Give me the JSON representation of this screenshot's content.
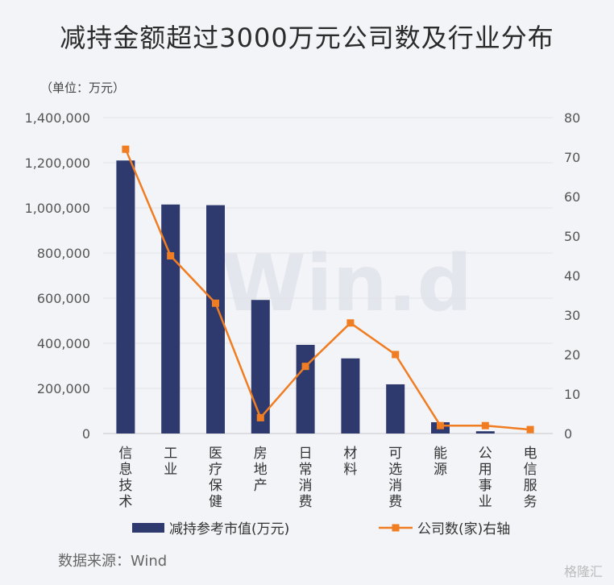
{
  "chart_data": {
    "type": "bar",
    "title": "减持金额超过3000万元公司数及行业分布",
    "unit_note": "（单位：万元）",
    "categories": [
      "信息技术",
      "工业",
      "医疗保健",
      "房地产",
      "日常消费",
      "材料",
      "可选消费",
      "能源",
      "公用事业",
      "电信服务"
    ],
    "series": [
      {
        "name": "减持参考市值(万元)",
        "type": "bar",
        "axis": "left",
        "color": "#2e3a6e",
        "values": [
          1210000,
          1015000,
          1012000,
          592000,
          393000,
          333000,
          218000,
          50000,
          10000,
          0
        ]
      },
      {
        "name": "公司数(家)右轴",
        "type": "line",
        "axis": "right",
        "color": "#f07d22",
        "values": [
          72,
          45,
          33,
          4,
          17,
          28,
          20,
          2,
          2,
          1
        ]
      }
    ],
    "left_axis": {
      "min": 0,
      "max": 1400000,
      "step": 200000,
      "tick_labels": [
        "0",
        "200,000",
        "400,000",
        "600,000",
        "800,000",
        "1,000,000",
        "1,200,000",
        "1,400,000"
      ]
    },
    "right_axis": {
      "min": 0,
      "max": 80,
      "step": 10,
      "tick_labels": [
        "0",
        "10",
        "20",
        "30",
        "40",
        "50",
        "60",
        "70",
        "80"
      ]
    },
    "legend_position": "bottom",
    "source": "数据来源：Wind",
    "watermark": "Win.d",
    "brand": "格隆汇"
  }
}
